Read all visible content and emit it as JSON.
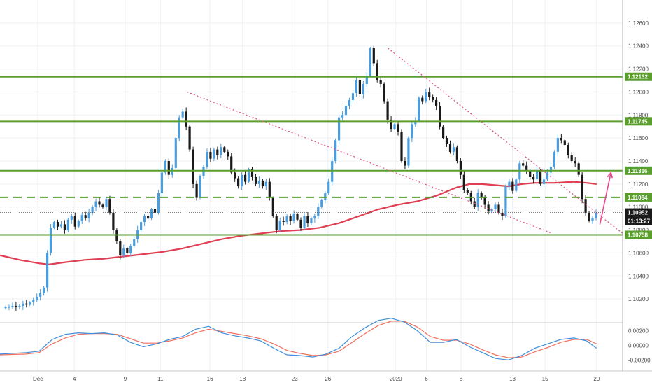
{
  "chart_data": {
    "type": "candlestick",
    "symbol": "EURUSD",
    "timeframe": "4h",
    "y_range": [
      1.1,
      1.128
    ],
    "y_ticks": [
      "1.12600",
      "1.12400",
      "1.12200",
      "1.12000",
      "1.11800",
      "1.11600",
      "1.11400",
      "1.11200",
      "1.11000",
      "1.10800",
      "1.10600",
      "1.10400",
      "1.10200"
    ],
    "x_ticks": [
      {
        "label": "Dec",
        "pos": 0.058
      },
      {
        "label": "4",
        "pos": 0.114
      },
      {
        "label": "9",
        "pos": 0.192
      },
      {
        "label": "11",
        "pos": 0.246
      },
      {
        "label": "16",
        "pos": 0.322
      },
      {
        "label": "18",
        "pos": 0.372
      },
      {
        "label": "23",
        "pos": 0.452
      },
      {
        "label": "26",
        "pos": 0.503
      },
      {
        "label": "2020",
        "pos": 0.607
      },
      {
        "label": "6",
        "pos": 0.654
      },
      {
        "label": "8",
        "pos": 0.707
      },
      {
        "label": "13",
        "pos": 0.786
      },
      {
        "label": "15",
        "pos": 0.836
      },
      {
        "label": "20",
        "pos": 0.915
      }
    ],
    "horizontal_levels": [
      {
        "value": 1.12132,
        "label": "1.12132",
        "style": "solid",
        "color": "#5a9e2e"
      },
      {
        "value": 1.11745,
        "label": "1.11745",
        "style": "solid",
        "color": "#5a9e2e"
      },
      {
        "value": 1.11316,
        "label": "1.11316",
        "style": "solid",
        "color": "#5a9e2e"
      },
      {
        "value": 1.11084,
        "label": "1.11084",
        "style": "dashed",
        "color": "#5a9e2e"
      },
      {
        "value": 1.10758,
        "label": "1.10758",
        "style": "solid",
        "color": "#5a9e2e"
      }
    ],
    "current_price": {
      "value": 1.10952,
      "label": "1.10952",
      "countdown": "01:13:27"
    },
    "trendlines": [
      {
        "from": [
          0.287,
          1.12
        ],
        "to": [
          0.845,
          1.10775
        ],
        "color": "#e0507a",
        "style": "dotted"
      },
      {
        "from": [
          0.595,
          1.1238
        ],
        "to": [
          0.955,
          1.1077
        ],
        "color": "#e0507a",
        "style": "dotted"
      }
    ],
    "arrow": {
      "from": [
        0.92,
        1.1085
      ],
      "to": [
        0.937,
        1.113
      ],
      "color": "#e8458c"
    },
    "moving_average": {
      "name": "MA",
      "color": "#e03e52",
      "points": [
        [
          0,
          1.1058
        ],
        [
          0.03,
          1.1054
        ],
        [
          0.06,
          1.1051
        ],
        [
          0.075,
          1.105
        ],
        [
          0.1,
          1.1052
        ],
        [
          0.13,
          1.1054
        ],
        [
          0.16,
          1.1055
        ],
        [
          0.19,
          1.1057
        ],
        [
          0.22,
          1.1059
        ],
        [
          0.25,
          1.1061
        ],
        [
          0.28,
          1.1064
        ],
        [
          0.31,
          1.1068
        ],
        [
          0.34,
          1.1072
        ],
        [
          0.37,
          1.1075
        ],
        [
          0.4,
          1.1077
        ],
        [
          0.43,
          1.1079
        ],
        [
          0.46,
          1.108
        ],
        [
          0.49,
          1.1082
        ],
        [
          0.52,
          1.1086
        ],
        [
          0.55,
          1.1092
        ],
        [
          0.58,
          1.1098
        ],
        [
          0.61,
          1.1102
        ],
        [
          0.64,
          1.1105
        ],
        [
          0.67,
          1.111
        ],
        [
          0.7,
          1.1117
        ],
        [
          0.72,
          1.112
        ],
        [
          0.74,
          1.112
        ],
        [
          0.76,
          1.1119
        ],
        [
          0.78,
          1.1118
        ],
        [
          0.8,
          1.112
        ],
        [
          0.82,
          1.1121
        ],
        [
          0.85,
          1.1121
        ],
        [
          0.88,
          1.1122
        ],
        [
          0.9,
          1.1121
        ],
        [
          0.915,
          1.112
        ]
      ]
    },
    "candles_close": [
      1.1013,
      1.1013,
      1.1014,
      1.1013,
      1.1014,
      1.1016,
      1.1015,
      1.1017,
      1.1019,
      1.1022,
      1.1025,
      1.103,
      1.106,
      1.1082,
      1.1087,
      1.1083,
      1.1085,
      1.108,
      1.1089,
      1.1092,
      1.1083,
      1.1088,
      1.1093,
      1.109,
      1.1095,
      1.11,
      1.1105,
      1.1102,
      1.11,
      1.1107,
      1.1095,
      1.108,
      1.107,
      1.1058,
      1.1064,
      1.106,
      1.1066,
      1.1072,
      1.108,
      1.1087,
      1.1092,
      1.109,
      1.1098,
      1.1095,
      1.1112,
      1.113,
      1.114,
      1.1128,
      1.1134,
      1.116,
      1.1178,
      1.1183,
      1.117,
      1.115,
      1.112,
      1.1108,
      1.1127,
      1.1135,
      1.1148,
      1.1142,
      1.115,
      1.1145,
      1.1152,
      1.1148,
      1.1144,
      1.113,
      1.1125,
      1.1118,
      1.1128,
      1.1122,
      1.1133,
      1.1126,
      1.112,
      1.1123,
      1.1118,
      1.1122,
      1.1108,
      1.1092,
      1.108,
      1.1088,
      1.1087,
      1.1092,
      1.1088,
      1.1094,
      1.1089,
      1.1082,
      1.1092,
      1.1086,
      1.109,
      1.1092,
      1.11,
      1.1106,
      1.1112,
      1.1122,
      1.114,
      1.1158,
      1.1178,
      1.118,
      1.1188,
      1.1193,
      1.1199,
      1.121,
      1.1198,
      1.1207,
      1.1214,
      1.1238,
      1.1225,
      1.121,
      1.1207,
      1.1192,
      1.1176,
      1.1168,
      1.1172,
      1.1165,
      1.114,
      1.1136,
      1.116,
      1.1172,
      1.1175,
      1.1195,
      1.1192,
      1.12,
      1.1196,
      1.1193,
      1.1188,
      1.117,
      1.116,
      1.1155,
      1.1148,
      1.1152,
      1.114,
      1.1128,
      1.1115,
      1.1112,
      1.1105,
      1.11,
      1.1112,
      1.1108,
      1.1102,
      1.1096,
      1.1098,
      1.1102,
      1.1095,
      1.1092,
      1.1118,
      1.1122,
      1.1114,
      1.1124,
      1.1138,
      1.1136,
      1.1132,
      1.1126,
      1.1124,
      1.1132,
      1.112,
      1.1124,
      1.113,
      1.1135,
      1.1148,
      1.116,
      1.1158,
      1.1154,
      1.1145,
      1.114,
      1.1138,
      1.1128,
      1.1107,
      1.1095,
      1.1088,
      1.109,
      1.1095
    ]
  },
  "oscillator": {
    "y_ticks": [
      "0.00200",
      "0.00000",
      "-0.00200"
    ],
    "range": [
      -0.0035,
      0.003
    ],
    "line_main": {
      "color": "#3d8fd8",
      "points": [
        [
          0,
          -0.0012
        ],
        [
          0.04,
          -0.001
        ],
        [
          0.06,
          -0.0008
        ],
        [
          0.08,
          0.0008
        ],
        [
          0.1,
          0.0015
        ],
        [
          0.12,
          0.0017
        ],
        [
          0.14,
          0.0016
        ],
        [
          0.16,
          0.0017
        ],
        [
          0.18,
          0.0014
        ],
        [
          0.2,
          0.0004
        ],
        [
          0.22,
          -0.0002
        ],
        [
          0.24,
          0.0002
        ],
        [
          0.26,
          0.0008
        ],
        [
          0.28,
          0.0012
        ],
        [
          0.3,
          0.0022
        ],
        [
          0.32,
          0.0026
        ],
        [
          0.34,
          0.0017
        ],
        [
          0.36,
          0.0013
        ],
        [
          0.38,
          0.001
        ],
        [
          0.4,
          0.0006
        ],
        [
          0.42,
          -0.0004
        ],
        [
          0.44,
          -0.0013
        ],
        [
          0.46,
          -0.0014
        ],
        [
          0.48,
          -0.0016
        ],
        [
          0.5,
          -0.0012
        ],
        [
          0.52,
          -0.0004
        ],
        [
          0.54,
          0.0012
        ],
        [
          0.56,
          0.0024
        ],
        [
          0.58,
          0.0034
        ],
        [
          0.6,
          0.0037
        ],
        [
          0.62,
          0.0032
        ],
        [
          0.64,
          0.002
        ],
        [
          0.66,
          0.0004
        ],
        [
          0.68,
          0.0004
        ],
        [
          0.7,
          0.0008
        ],
        [
          0.72,
          -0.0002
        ],
        [
          0.74,
          -0.001
        ],
        [
          0.76,
          -0.0018
        ],
        [
          0.78,
          -0.002
        ],
        [
          0.8,
          -0.0014
        ],
        [
          0.82,
          -0.0004
        ],
        [
          0.84,
          0.0002
        ],
        [
          0.86,
          0.0008
        ],
        [
          0.88,
          0.001
        ],
        [
          0.9,
          0.0006
        ],
        [
          0.915,
          -0.0004
        ]
      ]
    },
    "line_signal": {
      "color": "#f07060",
      "points": [
        [
          0,
          -0.0013
        ],
        [
          0.04,
          -0.0012
        ],
        [
          0.06,
          -0.001
        ],
        [
          0.08,
          0.0002
        ],
        [
          0.1,
          0.001
        ],
        [
          0.12,
          0.0015
        ],
        [
          0.14,
          0.0016
        ],
        [
          0.16,
          0.0016
        ],
        [
          0.18,
          0.0015
        ],
        [
          0.2,
          0.0009
        ],
        [
          0.22,
          0.0003
        ],
        [
          0.24,
          0.0003
        ],
        [
          0.26,
          0.0006
        ],
        [
          0.28,
          0.001
        ],
        [
          0.3,
          0.0017
        ],
        [
          0.32,
          0.0022
        ],
        [
          0.34,
          0.0019
        ],
        [
          0.36,
          0.0016
        ],
        [
          0.38,
          0.0013
        ],
        [
          0.4,
          0.0009
        ],
        [
          0.42,
          0.0002
        ],
        [
          0.44,
          -0.0007
        ],
        [
          0.46,
          -0.0011
        ],
        [
          0.48,
          -0.0014
        ],
        [
          0.5,
          -0.0013
        ],
        [
          0.52,
          -0.0008
        ],
        [
          0.54,
          0.0004
        ],
        [
          0.56,
          0.0016
        ],
        [
          0.58,
          0.0027
        ],
        [
          0.6,
          0.0033
        ],
        [
          0.62,
          0.0033
        ],
        [
          0.64,
          0.0025
        ],
        [
          0.66,
          0.0012
        ],
        [
          0.68,
          0.0007
        ],
        [
          0.7,
          0.0007
        ],
        [
          0.72,
          0.0002
        ],
        [
          0.74,
          -0.0006
        ],
        [
          0.76,
          -0.0013
        ],
        [
          0.78,
          -0.0017
        ],
        [
          0.8,
          -0.0016
        ],
        [
          0.82,
          -0.0009
        ],
        [
          0.84,
          -0.0003
        ],
        [
          0.86,
          0.0004
        ],
        [
          0.88,
          0.0008
        ],
        [
          0.9,
          0.0008
        ],
        [
          0.915,
          0.0002
        ]
      ]
    }
  },
  "colors": {
    "up_candle": "#4a9ee0",
    "down_candle": "#1a1a1a",
    "grid": "#eef0f3",
    "level": "#5a9e2e",
    "price_tag": "#1a1a1a"
  }
}
